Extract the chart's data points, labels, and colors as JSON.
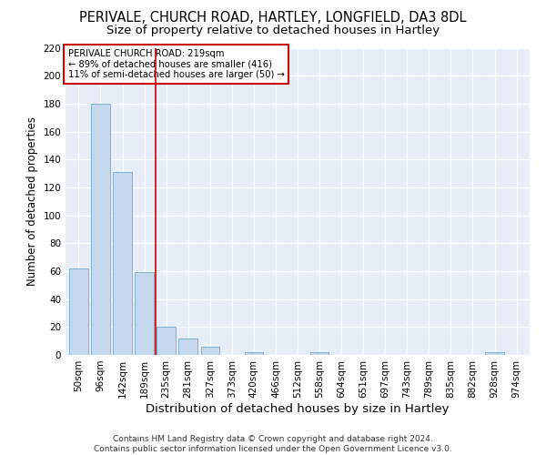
{
  "title1": "PERIVALE, CHURCH ROAD, HARTLEY, LONGFIELD, DA3 8DL",
  "title2": "Size of property relative to detached houses in Hartley",
  "xlabel": "Distribution of detached houses by size in Hartley",
  "ylabel": "Number of detached properties",
  "categories": [
    "50sqm",
    "96sqm",
    "142sqm",
    "189sqm",
    "235sqm",
    "281sqm",
    "327sqm",
    "373sqm",
    "420sqm",
    "466sqm",
    "512sqm",
    "558sqm",
    "604sqm",
    "651sqm",
    "697sqm",
    "743sqm",
    "789sqm",
    "835sqm",
    "882sqm",
    "928sqm",
    "974sqm"
  ],
  "values": [
    62,
    180,
    131,
    59,
    20,
    12,
    6,
    0,
    2,
    0,
    0,
    2,
    0,
    0,
    0,
    0,
    0,
    0,
    0,
    2,
    0
  ],
  "bar_color": "#c5d8ee",
  "bar_edge_color": "#7bafd4",
  "vline_color": "#cc0000",
  "annotation_line1": "PERIVALE CHURCH ROAD: 219sqm",
  "annotation_line2": "← 89% of detached houses are smaller (416)",
  "annotation_line3": "11% of semi-detached houses are larger (50) →",
  "annotation_box_color": "#ffffff",
  "annotation_box_edge": "#cc0000",
  "ylim": [
    0,
    220
  ],
  "yticks": [
    0,
    20,
    40,
    60,
    80,
    100,
    120,
    140,
    160,
    180,
    200,
    220
  ],
  "footer": "Contains HM Land Registry data © Crown copyright and database right 2024.\nContains public sector information licensed under the Open Government Licence v3.0.",
  "bg_color": "#e8eef8",
  "title1_fontsize": 10.5,
  "title2_fontsize": 9.5,
  "xlabel_fontsize": 9.5,
  "ylabel_fontsize": 8.5,
  "tick_fontsize": 7.5,
  "footer_fontsize": 6.5
}
